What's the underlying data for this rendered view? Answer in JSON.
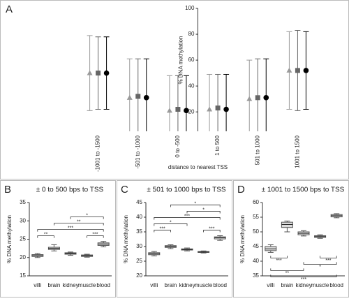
{
  "chart_data": [
    {
      "type": "errorbar",
      "panel": "A",
      "ylabel": "% DNA methylation",
      "xlabel": "distance to nearest TSS",
      "categories": [
        "-1001 to -1500",
        "-501 to -1000",
        "0 to -500",
        "1 to 500",
        "501 to 1000",
        "1001 to 1500"
      ],
      "ylim": [
        5,
        100
      ],
      "yticks": [
        20,
        40,
        60,
        80,
        100
      ],
      "series": [
        {
          "marker": "triangle",
          "color": "#9a9a9a",
          "values": [
            50,
            31,
            21,
            22,
            30,
            52
          ],
          "errors": [
            29,
            30,
            27,
            27,
            30,
            30
          ]
        },
        {
          "marker": "square",
          "color": "#666666",
          "values": [
            50,
            32,
            22,
            23,
            31,
            52
          ],
          "errors": [
            28,
            29,
            26,
            26,
            30,
            31
          ]
        },
        {
          "marker": "circle",
          "color": "#000000",
          "values": [
            50,
            31,
            21,
            22,
            31,
            52
          ],
          "errors": [
            28,
            30,
            27,
            27,
            30,
            30
          ]
        }
      ]
    },
    {
      "type": "box",
      "panel": "B",
      "title": "± 0 to 500 bps to TSS",
      "ylabel": "% DNA methylation",
      "categories": [
        "villi",
        "brain",
        "kidney",
        "muscle",
        "blood"
      ],
      "ylim": [
        15,
        35
      ],
      "yticks": [
        15,
        20,
        25,
        30,
        35
      ],
      "min": [
        20.0,
        21.8,
        20.6,
        20.1,
        22.9
      ],
      "q1": [
        20.3,
        22.2,
        20.9,
        20.3,
        23.3
      ],
      "median": [
        20.5,
        22.5,
        21.1,
        20.5,
        23.7
      ],
      "q3": [
        20.8,
        22.8,
        21.3,
        20.7,
        24.0
      ],
      "max": [
        21.1,
        23.5,
        21.5,
        20.9,
        24.4
      ],
      "bracket_side": "above",
      "brackets": [
        {
          "from": "villi",
          "to": "brain",
          "label": "**"
        },
        {
          "from": "muscle",
          "to": "blood",
          "label": "***"
        },
        {
          "from": "villi",
          "to": "blood",
          "label": "***"
        },
        {
          "from": "brain",
          "to": "blood",
          "label": "**"
        },
        {
          "from": "kidney",
          "to": "blood",
          "label": "*"
        }
      ]
    },
    {
      "type": "box",
      "panel": "C",
      "title": "± 501 to 1000 bps to TSS",
      "ylabel": "% DNA methylation",
      "categories": [
        "villi",
        "brain",
        "kidney",
        "muscle",
        "blood"
      ],
      "ylim": [
        20,
        45
      ],
      "yticks": [
        20,
        25,
        30,
        35,
        40,
        45
      ],
      "min": [
        26.8,
        29.3,
        28.5,
        27.8,
        32.1
      ],
      "q1": [
        27.2,
        29.7,
        28.8,
        28.0,
        32.6
      ],
      "median": [
        27.5,
        30.0,
        29.0,
        28.1,
        33.0
      ],
      "q3": [
        27.9,
        30.3,
        29.2,
        28.3,
        33.3
      ],
      "max": [
        28.3,
        30.6,
        29.5,
        28.5,
        33.7
      ],
      "bracket_side": "above",
      "brackets": [
        {
          "from": "villi",
          "to": "brain",
          "label": "***"
        },
        {
          "from": "muscle",
          "to": "blood",
          "label": "***"
        },
        {
          "from": "villi",
          "to": "kidney",
          "label": "*"
        },
        {
          "from": "villi",
          "to": "blood",
          "label": "***"
        },
        {
          "from": "kidney",
          "to": "blood",
          "label": "*"
        },
        {
          "from": "brain",
          "to": "blood",
          "label": "*"
        }
      ]
    },
    {
      "type": "box",
      "panel": "D",
      "title": "± 1001 to 1500 bps to TSS",
      "ylabel": "% DNA methylation",
      "categories": [
        "villi",
        "brain",
        "kidney",
        "muscle",
        "blood"
      ],
      "ylim": [
        35,
        60
      ],
      "yticks": [
        35,
        40,
        45,
        50,
        55,
        60
      ],
      "min": [
        43.0,
        50.0,
        48.6,
        47.8,
        54.8
      ],
      "q1": [
        43.6,
        51.5,
        49.0,
        48.1,
        55.1
      ],
      "median": [
        44.2,
        52.5,
        49.5,
        48.4,
        55.5
      ],
      "q3": [
        45.0,
        53.3,
        50.0,
        48.7,
        55.9
      ],
      "max": [
        45.6,
        53.7,
        50.4,
        49.0,
        56.2
      ],
      "bracket_side": "below",
      "brackets": [
        {
          "from": "villi",
          "to": "brain",
          "label": "***"
        },
        {
          "from": "muscle",
          "to": "blood",
          "label": "***"
        },
        {
          "from": "kidney",
          "to": "blood",
          "label": "*"
        },
        {
          "from": "villi",
          "to": "kidney",
          "label": "**"
        },
        {
          "from": "villi",
          "to": "blood",
          "label": "***"
        }
      ]
    }
  ]
}
